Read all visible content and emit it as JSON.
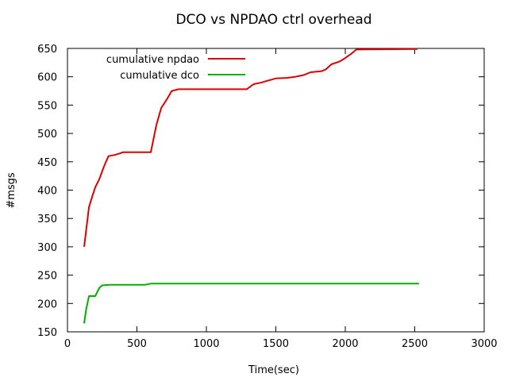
{
  "chart_data": {
    "type": "line",
    "title": "DCO vs NPDAO ctrl overhead",
    "xlabel": "Time(sec)",
    "ylabel": "#msgs",
    "xlim": [
      0,
      3000
    ],
    "ylim": [
      150,
      650
    ],
    "xticks": [
      0,
      500,
      1000,
      1500,
      2000,
      2500,
      3000
    ],
    "yticks": [
      150,
      200,
      250,
      300,
      350,
      400,
      450,
      500,
      550,
      600,
      650
    ],
    "grid": false,
    "legend_position": "top-left",
    "series": [
      {
        "name": "cumulative npdao",
        "color": "#dd0000",
        "points": [
          [
            120,
            300
          ],
          [
            155,
            370
          ],
          [
            180,
            390
          ],
          [
            200,
            405
          ],
          [
            230,
            420
          ],
          [
            260,
            440
          ],
          [
            295,
            460
          ],
          [
            340,
            462
          ],
          [
            380,
            465
          ],
          [
            400,
            467
          ],
          [
            600,
            467
          ],
          [
            640,
            515
          ],
          [
            675,
            545
          ],
          [
            715,
            560
          ],
          [
            750,
            575
          ],
          [
            800,
            578
          ],
          [
            1290,
            578
          ],
          [
            1340,
            587
          ],
          [
            1400,
            590
          ],
          [
            1440,
            593
          ],
          [
            1500,
            597
          ],
          [
            1580,
            598
          ],
          [
            1640,
            600
          ],
          [
            1700,
            603
          ],
          [
            1750,
            608
          ],
          [
            1830,
            610
          ],
          [
            1860,
            613
          ],
          [
            1900,
            622
          ],
          [
            1960,
            627
          ],
          [
            2000,
            633
          ],
          [
            2040,
            640
          ],
          [
            2080,
            648
          ],
          [
            2520,
            649
          ]
        ]
      },
      {
        "name": "cumulative dco",
        "color": "#00b000",
        "points": [
          [
            120,
            165
          ],
          [
            135,
            190
          ],
          [
            155,
            213
          ],
          [
            200,
            213
          ],
          [
            230,
            228
          ],
          [
            250,
            232
          ],
          [
            300,
            233
          ],
          [
            560,
            233
          ],
          [
            600,
            235
          ],
          [
            2530,
            235
          ]
        ]
      }
    ]
  }
}
